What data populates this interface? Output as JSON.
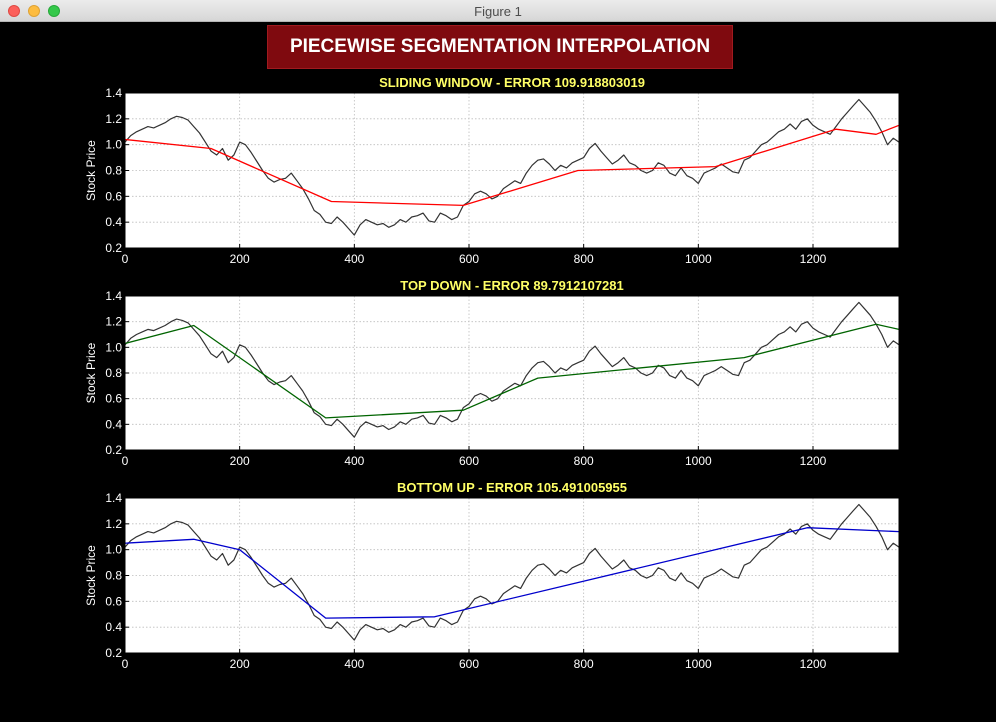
{
  "window": {
    "title": "Figure 1"
  },
  "figure": {
    "suptitle": "PIECEWISE SEGMENTATION INTERPOLATION",
    "background": "#000000",
    "title_color": "#ffff66"
  },
  "chart_data": [
    {
      "type": "line",
      "title": "SLIDING WINDOW - ERROR 109.918803019",
      "xlabel": "",
      "ylabel": "Stock Price",
      "xlim": [
        0,
        1350
      ],
      "ylim": [
        0.2,
        1.4
      ],
      "xticks": [
        0,
        200,
        400,
        600,
        800,
        1000,
        1200
      ],
      "yticks": [
        0.2,
        0.4,
        0.6,
        0.8,
        1.0,
        1.2,
        1.4
      ],
      "grid": true,
      "series": [
        {
          "role": "price",
          "color": "#333333",
          "x": [
            0,
            10,
            20,
            30,
            40,
            50,
            60,
            70,
            80,
            90,
            100,
            110,
            120,
            130,
            140,
            150,
            160,
            170,
            180,
            190,
            200,
            210,
            220,
            230,
            240,
            250,
            260,
            270,
            280,
            290,
            300,
            310,
            320,
            330,
            340,
            350,
            360,
            370,
            380,
            390,
            400,
            410,
            420,
            430,
            440,
            450,
            460,
            470,
            480,
            490,
            500,
            510,
            520,
            530,
            540,
            550,
            560,
            570,
            580,
            590,
            600,
            610,
            620,
            630,
            640,
            650,
            660,
            670,
            680,
            690,
            700,
            710,
            720,
            730,
            740,
            750,
            760,
            770,
            780,
            790,
            800,
            810,
            820,
            830,
            840,
            850,
            860,
            870,
            880,
            890,
            900,
            910,
            920,
            930,
            940,
            950,
            960,
            970,
            980,
            990,
            1000,
            1010,
            1020,
            1030,
            1040,
            1050,
            1060,
            1070,
            1080,
            1090,
            1100,
            1110,
            1120,
            1130,
            1140,
            1150,
            1160,
            1170,
            1180,
            1190,
            1200,
            1210,
            1220,
            1230,
            1240,
            1250,
            1260,
            1270,
            1280,
            1290,
            1300,
            1310,
            1320,
            1330,
            1340,
            1350
          ],
          "y": [
            1.02,
            1.07,
            1.1,
            1.12,
            1.14,
            1.13,
            1.15,
            1.17,
            1.2,
            1.22,
            1.21,
            1.19,
            1.14,
            1.09,
            1.02,
            0.95,
            0.92,
            0.97,
            0.88,
            0.92,
            1.02,
            1.0,
            0.94,
            0.87,
            0.8,
            0.74,
            0.71,
            0.73,
            0.74,
            0.78,
            0.72,
            0.66,
            0.58,
            0.49,
            0.46,
            0.4,
            0.39,
            0.44,
            0.4,
            0.35,
            0.3,
            0.38,
            0.42,
            0.4,
            0.38,
            0.39,
            0.36,
            0.38,
            0.42,
            0.4,
            0.44,
            0.45,
            0.47,
            0.41,
            0.4,
            0.47,
            0.45,
            0.42,
            0.44,
            0.53,
            0.56,
            0.62,
            0.64,
            0.62,
            0.58,
            0.6,
            0.66,
            0.69,
            0.72,
            0.7,
            0.78,
            0.84,
            0.88,
            0.89,
            0.85,
            0.8,
            0.84,
            0.82,
            0.86,
            0.88,
            0.9,
            0.97,
            1.01,
            0.95,
            0.9,
            0.85,
            0.88,
            0.92,
            0.86,
            0.84,
            0.8,
            0.78,
            0.8,
            0.86,
            0.84,
            0.78,
            0.76,
            0.82,
            0.76,
            0.74,
            0.7,
            0.78,
            0.8,
            0.82,
            0.85,
            0.82,
            0.79,
            0.78,
            0.88,
            0.9,
            0.95,
            1.0,
            1.02,
            1.06,
            1.1,
            1.12,
            1.16,
            1.12,
            1.18,
            1.2,
            1.15,
            1.12,
            1.1,
            1.08,
            1.14,
            1.2,
            1.25,
            1.3,
            1.35,
            1.3,
            1.25,
            1.18,
            1.1,
            1.0,
            1.05,
            1.02
          ]
        },
        {
          "role": "fit",
          "color": "#ff0000",
          "x": [
            0,
            150,
            360,
            590,
            790,
            1030,
            1240,
            1310,
            1350
          ],
          "y": [
            1.04,
            0.97,
            0.56,
            0.53,
            0.8,
            0.83,
            1.12,
            1.08,
            1.15
          ]
        }
      ]
    },
    {
      "type": "line",
      "title": "TOP DOWN - ERROR 89.7912107281",
      "xlabel": "",
      "ylabel": "Stock Price",
      "xlim": [
        0,
        1350
      ],
      "ylim": [
        0.2,
        1.4
      ],
      "xticks": [
        0,
        200,
        400,
        600,
        800,
        1000,
        1200
      ],
      "yticks": [
        0.2,
        0.4,
        0.6,
        0.8,
        1.0,
        1.2,
        1.4
      ],
      "grid": true,
      "series": [
        {
          "role": "price",
          "color": "#333333",
          "x": [
            0,
            10,
            20,
            30,
            40,
            50,
            60,
            70,
            80,
            90,
            100,
            110,
            120,
            130,
            140,
            150,
            160,
            170,
            180,
            190,
            200,
            210,
            220,
            230,
            240,
            250,
            260,
            270,
            280,
            290,
            300,
            310,
            320,
            330,
            340,
            350,
            360,
            370,
            380,
            390,
            400,
            410,
            420,
            430,
            440,
            450,
            460,
            470,
            480,
            490,
            500,
            510,
            520,
            530,
            540,
            550,
            560,
            570,
            580,
            590,
            600,
            610,
            620,
            630,
            640,
            650,
            660,
            670,
            680,
            690,
            700,
            710,
            720,
            730,
            740,
            750,
            760,
            770,
            780,
            790,
            800,
            810,
            820,
            830,
            840,
            850,
            860,
            870,
            880,
            890,
            900,
            910,
            920,
            930,
            940,
            950,
            960,
            970,
            980,
            990,
            1000,
            1010,
            1020,
            1030,
            1040,
            1050,
            1060,
            1070,
            1080,
            1090,
            1100,
            1110,
            1120,
            1130,
            1140,
            1150,
            1160,
            1170,
            1180,
            1190,
            1200,
            1210,
            1220,
            1230,
            1240,
            1250,
            1260,
            1270,
            1280,
            1290,
            1300,
            1310,
            1320,
            1330,
            1340,
            1350
          ],
          "y": [
            1.02,
            1.07,
            1.1,
            1.12,
            1.14,
            1.13,
            1.15,
            1.17,
            1.2,
            1.22,
            1.21,
            1.19,
            1.14,
            1.09,
            1.02,
            0.95,
            0.92,
            0.97,
            0.88,
            0.92,
            1.02,
            1.0,
            0.94,
            0.87,
            0.8,
            0.74,
            0.71,
            0.73,
            0.74,
            0.78,
            0.72,
            0.66,
            0.58,
            0.49,
            0.46,
            0.4,
            0.39,
            0.44,
            0.4,
            0.35,
            0.3,
            0.38,
            0.42,
            0.4,
            0.38,
            0.39,
            0.36,
            0.38,
            0.42,
            0.4,
            0.44,
            0.45,
            0.47,
            0.41,
            0.4,
            0.47,
            0.45,
            0.42,
            0.44,
            0.53,
            0.56,
            0.62,
            0.64,
            0.62,
            0.58,
            0.6,
            0.66,
            0.69,
            0.72,
            0.7,
            0.78,
            0.84,
            0.88,
            0.89,
            0.85,
            0.8,
            0.84,
            0.82,
            0.86,
            0.88,
            0.9,
            0.97,
            1.01,
            0.95,
            0.9,
            0.85,
            0.88,
            0.92,
            0.86,
            0.84,
            0.8,
            0.78,
            0.8,
            0.86,
            0.84,
            0.78,
            0.76,
            0.82,
            0.76,
            0.74,
            0.7,
            0.78,
            0.8,
            0.82,
            0.85,
            0.82,
            0.79,
            0.78,
            0.88,
            0.9,
            0.95,
            1.0,
            1.02,
            1.06,
            1.1,
            1.12,
            1.16,
            1.12,
            1.18,
            1.2,
            1.15,
            1.12,
            1.1,
            1.08,
            1.14,
            1.2,
            1.25,
            1.3,
            1.35,
            1.3,
            1.25,
            1.18,
            1.1,
            1.0,
            1.05,
            1.02
          ]
        },
        {
          "role": "fit",
          "color": "#006400",
          "x": [
            0,
            120,
            350,
            590,
            720,
            1080,
            1310,
            1350
          ],
          "y": [
            1.03,
            1.17,
            0.45,
            0.51,
            0.76,
            0.92,
            1.18,
            1.14
          ]
        }
      ]
    },
    {
      "type": "line",
      "title": "BOTTOM UP - ERROR 105.491005955",
      "xlabel": "",
      "ylabel": "Stock Price",
      "xlim": [
        0,
        1350
      ],
      "ylim": [
        0.2,
        1.4
      ],
      "xticks": [
        0,
        200,
        400,
        600,
        800,
        1000,
        1200
      ],
      "yticks": [
        0.2,
        0.4,
        0.6,
        0.8,
        1.0,
        1.2,
        1.4
      ],
      "grid": true,
      "series": [
        {
          "role": "price",
          "color": "#333333",
          "x": [
            0,
            10,
            20,
            30,
            40,
            50,
            60,
            70,
            80,
            90,
            100,
            110,
            120,
            130,
            140,
            150,
            160,
            170,
            180,
            190,
            200,
            210,
            220,
            230,
            240,
            250,
            260,
            270,
            280,
            290,
            300,
            310,
            320,
            330,
            340,
            350,
            360,
            370,
            380,
            390,
            400,
            410,
            420,
            430,
            440,
            450,
            460,
            470,
            480,
            490,
            500,
            510,
            520,
            530,
            540,
            550,
            560,
            570,
            580,
            590,
            600,
            610,
            620,
            630,
            640,
            650,
            660,
            670,
            680,
            690,
            700,
            710,
            720,
            730,
            740,
            750,
            760,
            770,
            780,
            790,
            800,
            810,
            820,
            830,
            840,
            850,
            860,
            870,
            880,
            890,
            900,
            910,
            920,
            930,
            940,
            950,
            960,
            970,
            980,
            990,
            1000,
            1010,
            1020,
            1030,
            1040,
            1050,
            1060,
            1070,
            1080,
            1090,
            1100,
            1110,
            1120,
            1130,
            1140,
            1150,
            1160,
            1170,
            1180,
            1190,
            1200,
            1210,
            1220,
            1230,
            1240,
            1250,
            1260,
            1270,
            1280,
            1290,
            1300,
            1310,
            1320,
            1330,
            1340,
            1350
          ],
          "y": [
            1.02,
            1.07,
            1.1,
            1.12,
            1.14,
            1.13,
            1.15,
            1.17,
            1.2,
            1.22,
            1.21,
            1.19,
            1.14,
            1.09,
            1.02,
            0.95,
            0.92,
            0.97,
            0.88,
            0.92,
            1.02,
            1.0,
            0.94,
            0.87,
            0.8,
            0.74,
            0.71,
            0.73,
            0.74,
            0.78,
            0.72,
            0.66,
            0.58,
            0.49,
            0.46,
            0.4,
            0.39,
            0.44,
            0.4,
            0.35,
            0.3,
            0.38,
            0.42,
            0.4,
            0.38,
            0.39,
            0.36,
            0.38,
            0.42,
            0.4,
            0.44,
            0.45,
            0.47,
            0.41,
            0.4,
            0.47,
            0.45,
            0.42,
            0.44,
            0.53,
            0.56,
            0.62,
            0.64,
            0.62,
            0.58,
            0.6,
            0.66,
            0.69,
            0.72,
            0.7,
            0.78,
            0.84,
            0.88,
            0.89,
            0.85,
            0.8,
            0.84,
            0.82,
            0.86,
            0.88,
            0.9,
            0.97,
            1.01,
            0.95,
            0.9,
            0.85,
            0.88,
            0.92,
            0.86,
            0.84,
            0.8,
            0.78,
            0.8,
            0.86,
            0.84,
            0.78,
            0.76,
            0.82,
            0.76,
            0.74,
            0.7,
            0.78,
            0.8,
            0.82,
            0.85,
            0.82,
            0.79,
            0.78,
            0.88,
            0.9,
            0.95,
            1.0,
            1.02,
            1.06,
            1.1,
            1.12,
            1.16,
            1.12,
            1.18,
            1.2,
            1.15,
            1.12,
            1.1,
            1.08,
            1.14,
            1.2,
            1.25,
            1.3,
            1.35,
            1.3,
            1.25,
            1.18,
            1.1,
            1.0,
            1.05,
            1.02
          ]
        },
        {
          "role": "fit",
          "color": "#0000cc",
          "x": [
            0,
            120,
            200,
            350,
            540,
            1190,
            1350
          ],
          "y": [
            1.05,
            1.08,
            1.0,
            0.47,
            0.48,
            1.17,
            1.14
          ]
        }
      ]
    }
  ]
}
